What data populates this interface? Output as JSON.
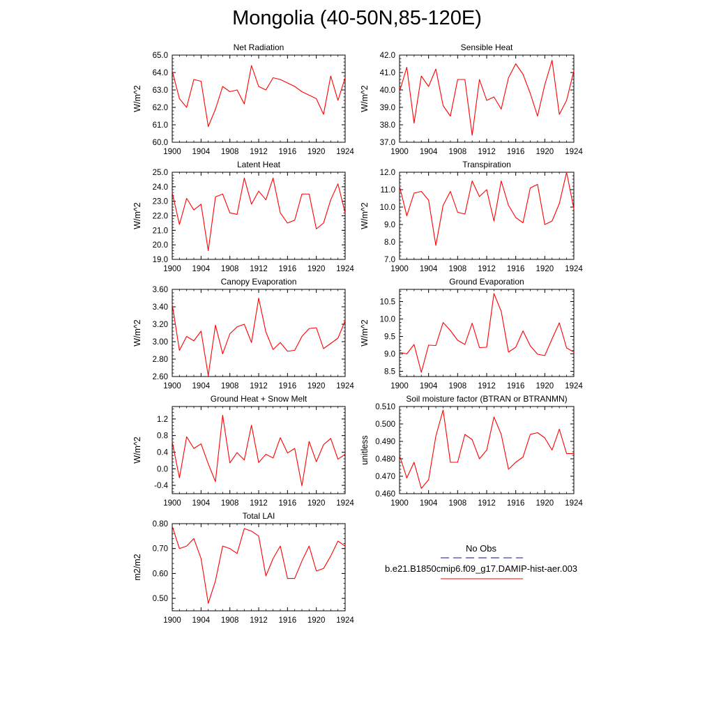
{
  "title": "Mongolia (40-50N,85-120E)",
  "colors": {
    "model": "#ff0000",
    "obs": "#3b3bb8",
    "axis": "#000000"
  },
  "legend": {
    "obs_label": "No Obs",
    "model_label": "b.e21.B1850cmip6.f09_g17.DAMIP-hist-aer.003"
  },
  "chart_data": [
    {
      "type": "line",
      "title": "Net Radiation",
      "ylabel": "W/m^2",
      "xlim": [
        1900,
        1924
      ],
      "ylim": [
        60.0,
        65.0
      ],
      "x_ticks": [
        1900,
        1904,
        1908,
        1912,
        1916,
        1920,
        1924
      ],
      "y_ticks": [
        "60.0",
        "61.0",
        "62.0",
        "63.0",
        "64.0",
        "65.0"
      ],
      "x": [
        1900,
        1901,
        1902,
        1903,
        1904,
        1905,
        1906,
        1907,
        1908,
        1909,
        1910,
        1911,
        1912,
        1913,
        1914,
        1915,
        1916,
        1917,
        1918,
        1919,
        1920,
        1921,
        1922,
        1923,
        1924
      ],
      "series": [
        {
          "values": [
            64.1,
            62.5,
            62.0,
            63.6,
            63.5,
            60.9,
            61.9,
            63.2,
            62.9,
            63.0,
            62.2,
            64.4,
            63.2,
            63.0,
            63.7,
            63.6,
            63.4,
            63.2,
            62.9,
            62.7,
            62.5,
            61.6,
            63.8,
            62.4,
            63.7
          ]
        }
      ]
    },
    {
      "type": "line",
      "title": "Sensible Heat",
      "ylabel": "W/m^2",
      "xlim": [
        1900,
        1924
      ],
      "ylim": [
        37.0,
        42.0
      ],
      "x_ticks": [
        1900,
        1904,
        1908,
        1912,
        1916,
        1920,
        1924
      ],
      "y_ticks": [
        "37.0",
        "38.0",
        "39.0",
        "40.0",
        "41.0",
        "42.0"
      ],
      "x": [
        1900,
        1901,
        1902,
        1903,
        1904,
        1905,
        1906,
        1907,
        1908,
        1909,
        1910,
        1911,
        1912,
        1913,
        1914,
        1915,
        1916,
        1917,
        1918,
        1919,
        1920,
        1921,
        1922,
        1923,
        1924
      ],
      "series": [
        {
          "values": [
            39.9,
            41.3,
            38.1,
            40.8,
            40.2,
            41.2,
            39.1,
            38.5,
            40.6,
            40.6,
            37.4,
            40.6,
            39.4,
            39.6,
            38.9,
            40.7,
            41.5,
            40.9,
            39.8,
            38.5,
            40.3,
            41.7,
            38.6,
            39.4,
            41.1
          ]
        }
      ]
    },
    {
      "type": "line",
      "title": "Latent Heat",
      "ylabel": "W/m^2",
      "xlim": [
        1900,
        1924
      ],
      "ylim": [
        19.0,
        25.0
      ],
      "x_ticks": [
        1900,
        1904,
        1908,
        1912,
        1916,
        1920,
        1924
      ],
      "y_ticks": [
        "19.0",
        "20.0",
        "21.0",
        "22.0",
        "23.0",
        "24.0",
        "25.0"
      ],
      "x": [
        1900,
        1901,
        1902,
        1903,
        1904,
        1905,
        1906,
        1907,
        1908,
        1909,
        1910,
        1911,
        1912,
        1913,
        1914,
        1915,
        1916,
        1917,
        1918,
        1919,
        1920,
        1921,
        1922,
        1923,
        1924
      ],
      "series": [
        {
          "values": [
            23.6,
            21.4,
            23.2,
            22.4,
            22.8,
            19.6,
            23.3,
            23.5,
            22.2,
            22.1,
            24.6,
            22.8,
            23.7,
            23.1,
            24.6,
            22.2,
            21.5,
            21.7,
            23.5,
            23.5,
            21.1,
            21.5,
            23.1,
            24.2,
            22.2
          ]
        }
      ]
    },
    {
      "type": "line",
      "title": "Transpiration",
      "ylabel": "W/m^2",
      "xlim": [
        1900,
        1924
      ],
      "ylim": [
        7.0,
        12.0
      ],
      "x_ticks": [
        1900,
        1904,
        1908,
        1912,
        1916,
        1920,
        1924
      ],
      "y_ticks": [
        "7.0",
        "8.0",
        "9.0",
        "10.0",
        "11.0",
        "12.0"
      ],
      "x": [
        1900,
        1901,
        1902,
        1903,
        1904,
        1905,
        1906,
        1907,
        1908,
        1909,
        1910,
        1911,
        1912,
        1913,
        1914,
        1915,
        1916,
        1917,
        1918,
        1919,
        1920,
        1921,
        1922,
        1923,
        1924
      ],
      "series": [
        {
          "values": [
            11.2,
            9.5,
            10.8,
            10.9,
            10.4,
            7.8,
            10.1,
            10.9,
            9.7,
            9.6,
            11.5,
            10.6,
            11.0,
            9.2,
            11.5,
            10.1,
            9.4,
            9.1,
            11.1,
            11.3,
            9.0,
            9.2,
            10.2,
            12.0,
            9.9
          ]
        }
      ]
    },
    {
      "type": "line",
      "title": "Canopy Evaporation",
      "ylabel": "W/m^2",
      "xlim": [
        1900,
        1924
      ],
      "ylim": [
        2.6,
        3.6
      ],
      "x_ticks": [
        1900,
        1904,
        1908,
        1912,
        1916,
        1920,
        1924
      ],
      "y_ticks": [
        "2.60",
        "2.80",
        "3.00",
        "3.20",
        "3.40",
        "3.60"
      ],
      "x": [
        1900,
        1901,
        1902,
        1903,
        1904,
        1905,
        1906,
        1907,
        1908,
        1909,
        1910,
        1911,
        1912,
        1913,
        1914,
        1915,
        1916,
        1917,
        1918,
        1919,
        1920,
        1921,
        1922,
        1923,
        1924
      ],
      "series": [
        {
          "values": [
            3.43,
            2.9,
            3.06,
            3.01,
            3.12,
            2.61,
            3.19,
            2.86,
            3.09,
            3.17,
            3.2,
            2.99,
            3.5,
            3.11,
            2.91,
            2.99,
            2.89,
            2.9,
            3.06,
            3.15,
            3.16,
            2.92,
            2.98,
            3.04,
            3.24
          ]
        }
      ]
    },
    {
      "type": "line",
      "title": "Ground Evaporation",
      "ylabel": "W/m^2",
      "xlim": [
        1900,
        1924
      ],
      "ylim": [
        8.35,
        10.85
      ],
      "x_ticks": [
        1900,
        1904,
        1908,
        1912,
        1916,
        1920,
        1924
      ],
      "y_ticks": [
        "8.5",
        "9.0",
        "9.5",
        "10.0",
        "10.5"
      ],
      "x": [
        1900,
        1901,
        1902,
        1903,
        1904,
        1905,
        1906,
        1907,
        1908,
        1909,
        1910,
        1911,
        1912,
        1913,
        1914,
        1915,
        1916,
        1917,
        1918,
        1919,
        1920,
        1921,
        1922,
        1923,
        1924
      ],
      "series": [
        {
          "values": [
            9.05,
            9.0,
            9.27,
            8.47,
            9.25,
            9.24,
            9.9,
            9.67,
            9.39,
            9.27,
            9.88,
            9.18,
            9.19,
            10.73,
            10.22,
            9.05,
            9.19,
            9.66,
            9.23,
            8.99,
            8.95,
            9.43,
            9.89,
            9.17,
            9.05
          ]
        }
      ]
    },
    {
      "type": "line",
      "title": "Ground Heat + Snow Melt",
      "ylabel": "W/m^2",
      "xlim": [
        1900,
        1924
      ],
      "ylim": [
        -0.6,
        1.5
      ],
      "x_ticks": [
        1900,
        1904,
        1908,
        1912,
        1916,
        1920,
        1924
      ],
      "y_ticks": [
        "-0.4",
        "0.0",
        "0.4",
        "0.8",
        "1.2"
      ],
      "x": [
        1900,
        1901,
        1902,
        1903,
        1904,
        1905,
        1906,
        1907,
        1908,
        1909,
        1910,
        1911,
        1912,
        1913,
        1914,
        1915,
        1916,
        1917,
        1918,
        1919,
        1920,
        1921,
        1922,
        1923,
        1924
      ],
      "series": [
        {
          "values": [
            0.65,
            -0.22,
            0.77,
            0.49,
            0.6,
            0.12,
            -0.31,
            1.29,
            0.14,
            0.39,
            0.21,
            1.05,
            0.15,
            0.35,
            0.26,
            0.75,
            0.38,
            0.49,
            -0.41,
            0.66,
            0.17,
            0.58,
            0.73,
            0.23,
            0.35
          ]
        }
      ]
    },
    {
      "type": "line",
      "title": "Soil moisture factor (BTRAN or BTRANMN)",
      "ylabel": "unitless",
      "xlim": [
        1900,
        1924
      ],
      "ylim": [
        0.46,
        0.51
      ],
      "x_ticks": [
        1900,
        1904,
        1908,
        1912,
        1916,
        1920,
        1924
      ],
      "y_ticks": [
        "0.460",
        "0.470",
        "0.480",
        "0.490",
        "0.500",
        "0.510"
      ],
      "x": [
        1900,
        1901,
        1902,
        1903,
        1904,
        1905,
        1906,
        1907,
        1908,
        1909,
        1910,
        1911,
        1912,
        1913,
        1914,
        1915,
        1916,
        1917,
        1918,
        1919,
        1920,
        1921,
        1922,
        1923,
        1924
      ],
      "series": [
        {
          "values": [
            0.482,
            0.469,
            0.478,
            0.463,
            0.468,
            0.493,
            0.508,
            0.478,
            0.478,
            0.494,
            0.491,
            0.48,
            0.485,
            0.504,
            0.494,
            0.474,
            0.478,
            0.481,
            0.494,
            0.495,
            0.492,
            0.485,
            0.497,
            0.483,
            0.483
          ]
        }
      ]
    },
    {
      "type": "line",
      "title": "Total LAI",
      "ylabel": "m2/m2",
      "xlim": [
        1900,
        1924
      ],
      "ylim": [
        0.45,
        0.8
      ],
      "x_ticks": [
        1900,
        1904,
        1908,
        1912,
        1916,
        1920,
        1924
      ],
      "y_ticks": [
        "0.50",
        "0.60",
        "0.70",
        "0.80"
      ],
      "x": [
        1900,
        1901,
        1902,
        1903,
        1904,
        1905,
        1906,
        1907,
        1908,
        1909,
        1910,
        1911,
        1912,
        1913,
        1914,
        1915,
        1916,
        1917,
        1918,
        1919,
        1920,
        1921,
        1922,
        1923,
        1924
      ],
      "series": [
        {
          "values": [
            0.79,
            0.7,
            0.71,
            0.74,
            0.66,
            0.48,
            0.57,
            0.71,
            0.7,
            0.68,
            0.78,
            0.77,
            0.75,
            0.59,
            0.66,
            0.71,
            0.58,
            0.58,
            0.65,
            0.71,
            0.61,
            0.62,
            0.67,
            0.73,
            0.71
          ]
        }
      ]
    }
  ]
}
